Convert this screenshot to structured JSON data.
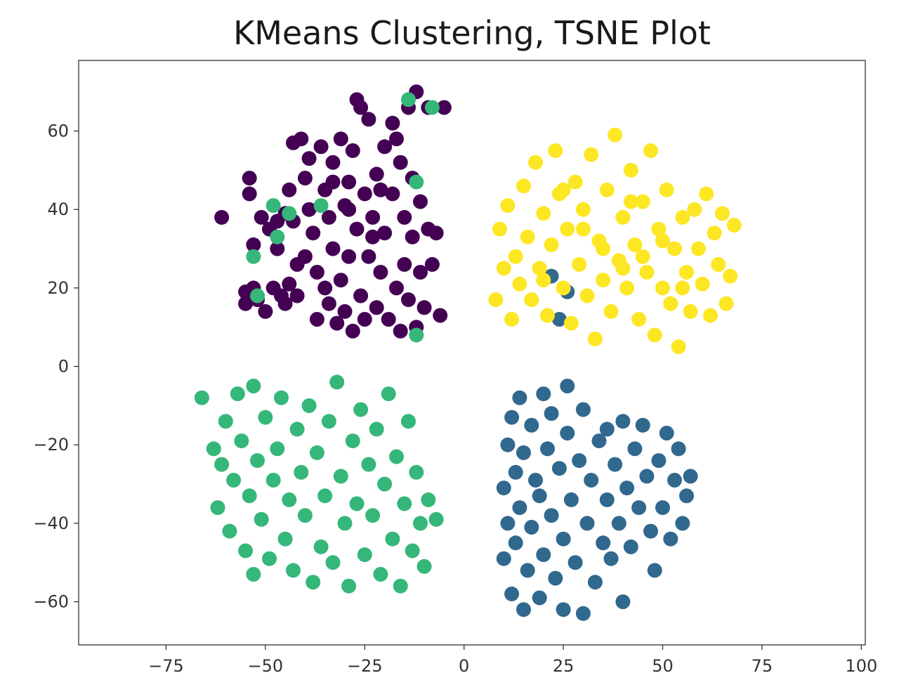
{
  "chart_data": {
    "type": "scatter",
    "title": "KMeans Clustering, TSNE Plot",
    "xlabel": "",
    "ylabel": "",
    "xlim": [
      -97,
      101
    ],
    "ylim": [
      -71,
      78
    ],
    "xticks": [
      -75,
      -50,
      -25,
      0,
      25,
      50,
      75,
      100
    ],
    "yticks": [
      -60,
      -40,
      -20,
      0,
      20,
      40,
      60
    ],
    "xtick_labels": [
      "−75",
      "−50",
      "−25",
      "0",
      "25",
      "50",
      "75",
      "100"
    ],
    "ytick_labels": [
      "−60",
      "−40",
      "−20",
      "0",
      "20",
      "40",
      "60"
    ],
    "grid": false,
    "legend": "none",
    "series": [
      {
        "color": "#440154",
        "points": [
          [
            -61,
            38
          ],
          [
            -55,
            16
          ],
          [
            -55,
            19
          ],
          [
            -54,
            44
          ],
          [
            -54,
            48
          ],
          [
            -53,
            20
          ],
          [
            -53,
            31
          ],
          [
            -52,
            17
          ],
          [
            -51,
            38
          ],
          [
            -50,
            14
          ],
          [
            -49,
            35
          ],
          [
            -48,
            20
          ],
          [
            -47,
            37
          ],
          [
            -47,
            30
          ],
          [
            -46,
            18
          ],
          [
            -45,
            16
          ],
          [
            -44,
            21
          ],
          [
            -44,
            45
          ],
          [
            -43,
            57
          ],
          [
            -43,
            37
          ],
          [
            -42,
            26
          ],
          [
            -42,
            18
          ],
          [
            -41,
            58
          ],
          [
            -40,
            28
          ],
          [
            -40,
            48
          ],
          [
            -39,
            53
          ],
          [
            -38,
            34
          ],
          [
            -37,
            12
          ],
          [
            -37,
            24
          ],
          [
            -36,
            56
          ],
          [
            -35,
            45
          ],
          [
            -35,
            20
          ],
          [
            -34,
            38
          ],
          [
            -34,
            16
          ],
          [
            -33,
            52
          ],
          [
            -33,
            30
          ],
          [
            -32,
            11
          ],
          [
            -31,
            58
          ],
          [
            -31,
            22
          ],
          [
            -30,
            41
          ],
          [
            -30,
            14
          ],
          [
            -29,
            47
          ],
          [
            -29,
            28
          ],
          [
            -28,
            9
          ],
          [
            -28,
            55
          ],
          [
            -27,
            35
          ],
          [
            -26,
            66
          ],
          [
            -26,
            18
          ],
          [
            -25,
            44
          ],
          [
            -25,
            12
          ],
          [
            -24,
            63
          ],
          [
            -24,
            28
          ],
          [
            -23,
            38
          ],
          [
            -22,
            49
          ],
          [
            -22,
            15
          ],
          [
            -21,
            24
          ],
          [
            -20,
            56
          ],
          [
            -20,
            34
          ],
          [
            -19,
            12
          ],
          [
            -18,
            44
          ],
          [
            -18,
            62
          ],
          [
            -17,
            20
          ],
          [
            -16,
            52
          ],
          [
            -16,
            9
          ],
          [
            -15,
            38
          ],
          [
            -15,
            26
          ],
          [
            -14,
            66
          ],
          [
            -14,
            17
          ],
          [
            -13,
            48
          ],
          [
            -13,
            33
          ],
          [
            -12,
            70
          ],
          [
            -12,
            10
          ],
          [
            -11,
            24
          ],
          [
            -11,
            42
          ],
          [
            -10,
            15
          ],
          [
            -9,
            35
          ],
          [
            -9,
            66
          ],
          [
            -8,
            26
          ],
          [
            -7,
            34
          ],
          [
            -6,
            13
          ],
          [
            -5,
            66
          ],
          [
            -27,
            68
          ],
          [
            -17,
            58
          ],
          [
            -33,
            47
          ],
          [
            -45,
            39
          ],
          [
            -39,
            40
          ],
          [
            -23,
            33
          ],
          [
            -29,
            40
          ],
          [
            -21,
            45
          ]
        ]
      },
      {
        "color": "#31688e",
        "points": [
          [
            10,
            -31
          ],
          [
            10,
            -49
          ],
          [
            11,
            -20
          ],
          [
            11,
            -40
          ],
          [
            12,
            -13
          ],
          [
            12,
            -58
          ],
          [
            13,
            -27
          ],
          [
            13,
            -45
          ],
          [
            14,
            -8
          ],
          [
            14,
            -36
          ],
          [
            15,
            -62
          ],
          [
            15,
            -22
          ],
          [
            16,
            -52
          ],
          [
            17,
            -15
          ],
          [
            17,
            -41
          ],
          [
            18,
            -29
          ],
          [
            19,
            -59
          ],
          [
            19,
            -33
          ],
          [
            20,
            -7
          ],
          [
            20,
            -48
          ],
          [
            21,
            -21
          ],
          [
            22,
            -38
          ],
          [
            22,
            -12
          ],
          [
            23,
            -54
          ],
          [
            24,
            -26
          ],
          [
            25,
            -44
          ],
          [
            25,
            -62
          ],
          [
            26,
            -5
          ],
          [
            26,
            -17
          ],
          [
            27,
            -34
          ],
          [
            28,
            -50
          ],
          [
            29,
            -24
          ],
          [
            30,
            -63
          ],
          [
            30,
            -11
          ],
          [
            31,
            -40
          ],
          [
            32,
            -29
          ],
          [
            33,
            -55
          ],
          [
            34,
            -19
          ],
          [
            35,
            -45
          ],
          [
            36,
            -34
          ],
          [
            36,
            -16
          ],
          [
            37,
            -49
          ],
          [
            38,
            -25
          ],
          [
            39,
            -40
          ],
          [
            40,
            -60
          ],
          [
            40,
            -14
          ],
          [
            41,
            -31
          ],
          [
            42,
            -46
          ],
          [
            43,
            -21
          ],
          [
            44,
            -36
          ],
          [
            45,
            -15
          ],
          [
            46,
            -28
          ],
          [
            47,
            -42
          ],
          [
            48,
            -52
          ],
          [
            49,
            -24
          ],
          [
            50,
            -36
          ],
          [
            51,
            -17
          ],
          [
            52,
            -44
          ],
          [
            53,
            -29
          ],
          [
            54,
            -21
          ],
          [
            55,
            -40
          ],
          [
            56,
            -33
          ],
          [
            57,
            -28
          ],
          [
            22,
            23
          ],
          [
            26,
            19
          ],
          [
            24,
            12
          ]
        ]
      },
      {
        "color": "#35b779",
        "points": [
          [
            -66,
            -8
          ],
          [
            -63,
            -21
          ],
          [
            -62,
            -36
          ],
          [
            -61,
            -25
          ],
          [
            -60,
            -14
          ],
          [
            -59,
            -42
          ],
          [
            -58,
            -29
          ],
          [
            -57,
            -7
          ],
          [
            -56,
            -19
          ],
          [
            -55,
            -47
          ],
          [
            -54,
            -33
          ],
          [
            -53,
            -53
          ],
          [
            -53,
            -5
          ],
          [
            -52,
            -24
          ],
          [
            -51,
            -39
          ],
          [
            -50,
            -13
          ],
          [
            -49,
            -49
          ],
          [
            -48,
            -29
          ],
          [
            -47,
            -21
          ],
          [
            -46,
            -8
          ],
          [
            -45,
            -44
          ],
          [
            -44,
            -34
          ],
          [
            -43,
            -52
          ],
          [
            -42,
            -16
          ],
          [
            -41,
            -27
          ],
          [
            -40,
            -38
          ],
          [
            -39,
            -10
          ],
          [
            -38,
            -55
          ],
          [
            -37,
            -22
          ],
          [
            -36,
            -46
          ],
          [
            -35,
            -33
          ],
          [
            -34,
            -14
          ],
          [
            -33,
            -50
          ],
          [
            -32,
            -4
          ],
          [
            -31,
            -28
          ],
          [
            -30,
            -40
          ],
          [
            -29,
            -56
          ],
          [
            -28,
            -19
          ],
          [
            -27,
            -35
          ],
          [
            -26,
            -11
          ],
          [
            -25,
            -48
          ],
          [
            -24,
            -25
          ],
          [
            -23,
            -38
          ],
          [
            -22,
            -16
          ],
          [
            -21,
            -53
          ],
          [
            -20,
            -30
          ],
          [
            -19,
            -7
          ],
          [
            -18,
            -44
          ],
          [
            -17,
            -23
          ],
          [
            -16,
            -56
          ],
          [
            -15,
            -35
          ],
          [
            -14,
            -14
          ],
          [
            -13,
            -47
          ],
          [
            -12,
            -27
          ],
          [
            -11,
            -40
          ],
          [
            -10,
            -51
          ],
          [
            -9,
            -34
          ],
          [
            -7,
            -39
          ],
          [
            -14,
            68
          ],
          [
            -8,
            66
          ],
          [
            -12,
            47
          ],
          [
            -48,
            41
          ],
          [
            -47,
            33
          ],
          [
            -44,
            39
          ],
          [
            -36,
            41
          ],
          [
            -53,
            28
          ],
          [
            -52,
            18
          ],
          [
            -12,
            8
          ]
        ]
      },
      {
        "color": "#fde725",
        "points": [
          [
            8,
            17
          ],
          [
            9,
            35
          ],
          [
            10,
            25
          ],
          [
            11,
            41
          ],
          [
            12,
            12
          ],
          [
            13,
            28
          ],
          [
            14,
            21
          ],
          [
            15,
            46
          ],
          [
            16,
            33
          ],
          [
            17,
            17
          ],
          [
            18,
            52
          ],
          [
            19,
            25
          ],
          [
            20,
            39
          ],
          [
            21,
            13
          ],
          [
            22,
            31
          ],
          [
            23,
            55
          ],
          [
            24,
            44
          ],
          [
            25,
            20
          ],
          [
            26,
            35
          ],
          [
            27,
            11
          ],
          [
            28,
            47
          ],
          [
            29,
            26
          ],
          [
            30,
            40
          ],
          [
            31,
            18
          ],
          [
            32,
            54
          ],
          [
            33,
            7
          ],
          [
            34,
            32
          ],
          [
            35,
            22
          ],
          [
            36,
            45
          ],
          [
            37,
            14
          ],
          [
            38,
            59
          ],
          [
            39,
            27
          ],
          [
            40,
            38
          ],
          [
            41,
            20
          ],
          [
            42,
            50
          ],
          [
            43,
            31
          ],
          [
            44,
            12
          ],
          [
            45,
            42
          ],
          [
            46,
            24
          ],
          [
            47,
            55
          ],
          [
            48,
            8
          ],
          [
            49,
            35
          ],
          [
            50,
            20
          ],
          [
            51,
            45
          ],
          [
            52,
            16
          ],
          [
            53,
            30
          ],
          [
            54,
            5
          ],
          [
            55,
            38
          ],
          [
            56,
            24
          ],
          [
            57,
            14
          ],
          [
            58,
            40
          ],
          [
            59,
            30
          ],
          [
            60,
            21
          ],
          [
            61,
            44
          ],
          [
            62,
            13
          ],
          [
            63,
            34
          ],
          [
            64,
            26
          ],
          [
            65,
            39
          ],
          [
            66,
            16
          ],
          [
            67,
            23
          ],
          [
            68,
            36
          ],
          [
            20,
            22
          ],
          [
            30,
            35
          ],
          [
            35,
            30
          ],
          [
            45,
            28
          ],
          [
            50,
            32
          ],
          [
            40,
            25
          ],
          [
            25,
            45
          ],
          [
            55,
            20
          ],
          [
            42,
            42
          ]
        ]
      }
    ]
  }
}
